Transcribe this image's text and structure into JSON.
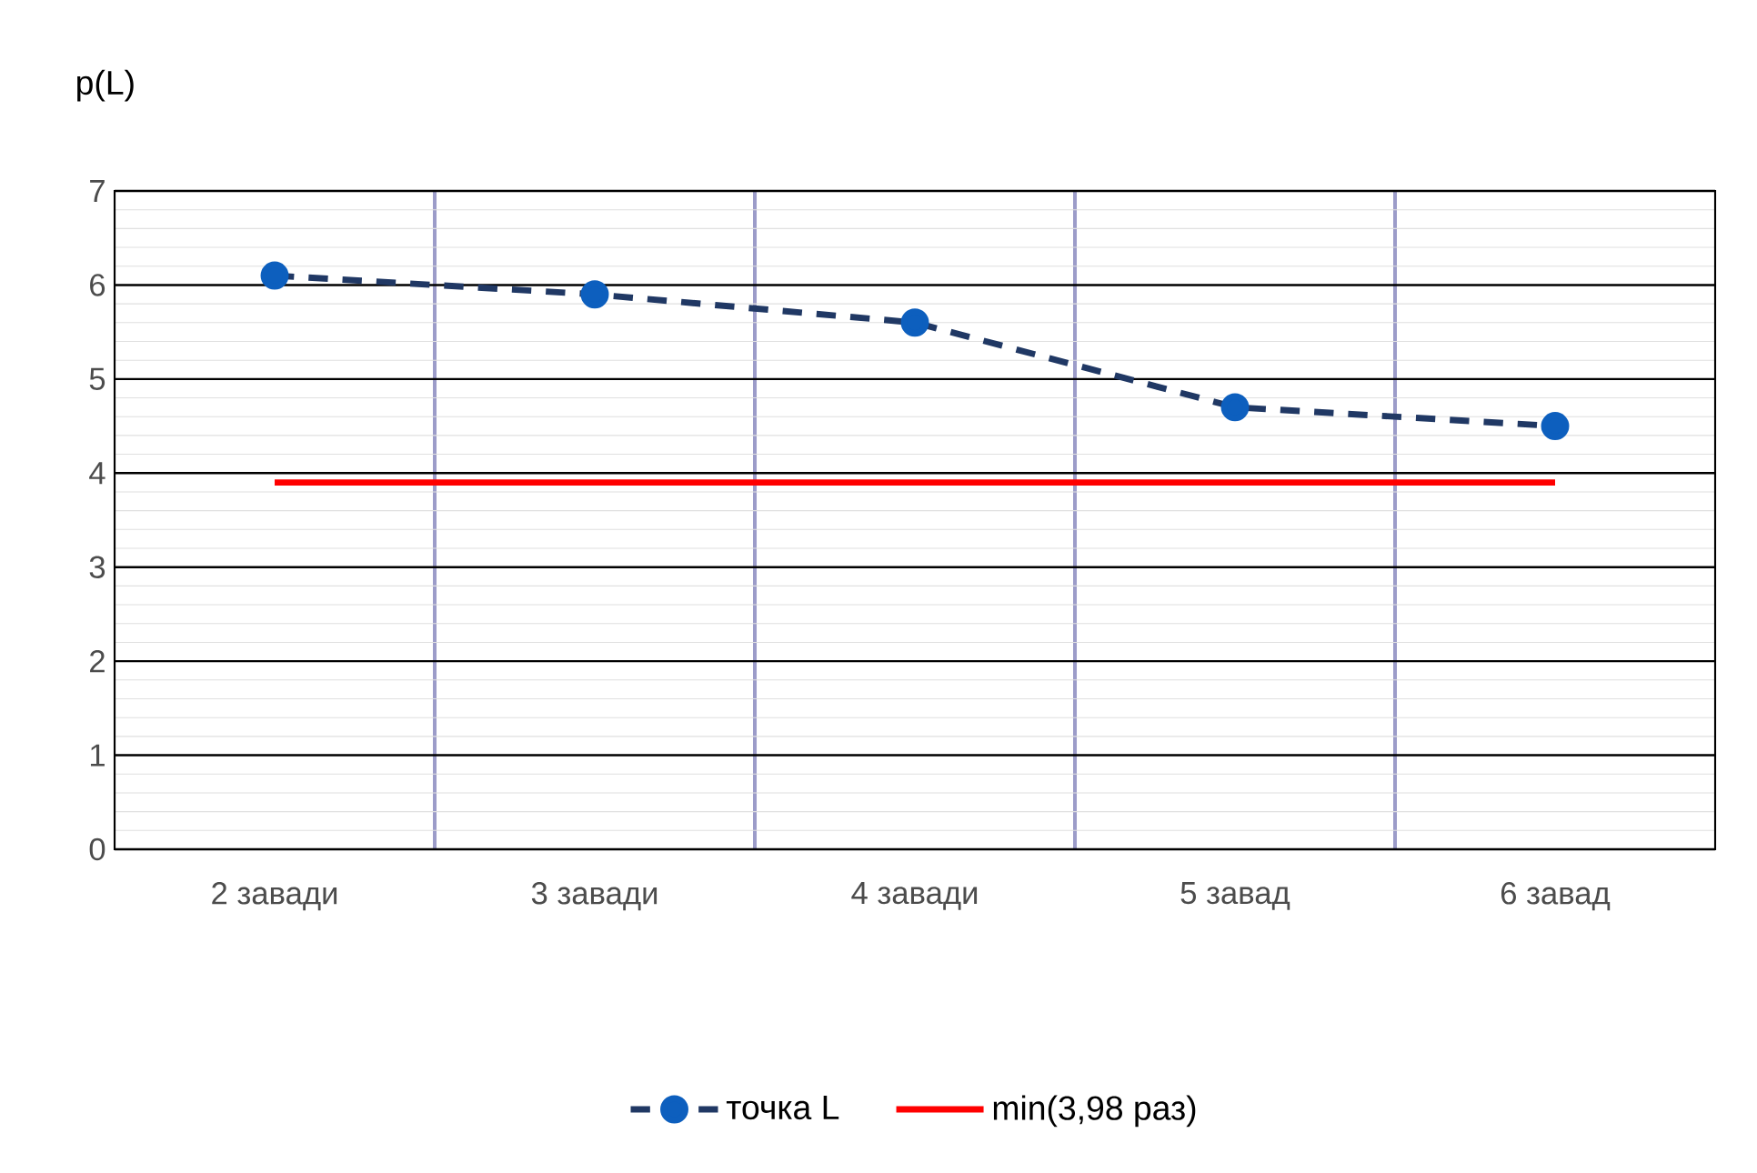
{
  "chart_data": {
    "type": "line",
    "ylabel": "p(L)",
    "categories": [
      "2 завади",
      "3 завади",
      "4 завади",
      "5 завад",
      "6 завад"
    ],
    "series": [
      {
        "name": "точка L",
        "color": "#203864",
        "values": [
          6.1,
          5.9,
          5.6,
          4.7,
          4.5
        ],
        "marker": "circle",
        "line_style": "dashed"
      },
      {
        "name": "min(3,98 раз)",
        "color": "#ff0000",
        "values": [
          3.9,
          3.9,
          3.9,
          3.9,
          3.9
        ],
        "marker": "none",
        "line_style": "solid"
      }
    ],
    "ylim": [
      0,
      7
    ],
    "yticks": [
      0,
      1,
      2,
      3,
      4,
      5,
      6,
      7
    ],
    "grid": true,
    "legend": "bottom"
  }
}
